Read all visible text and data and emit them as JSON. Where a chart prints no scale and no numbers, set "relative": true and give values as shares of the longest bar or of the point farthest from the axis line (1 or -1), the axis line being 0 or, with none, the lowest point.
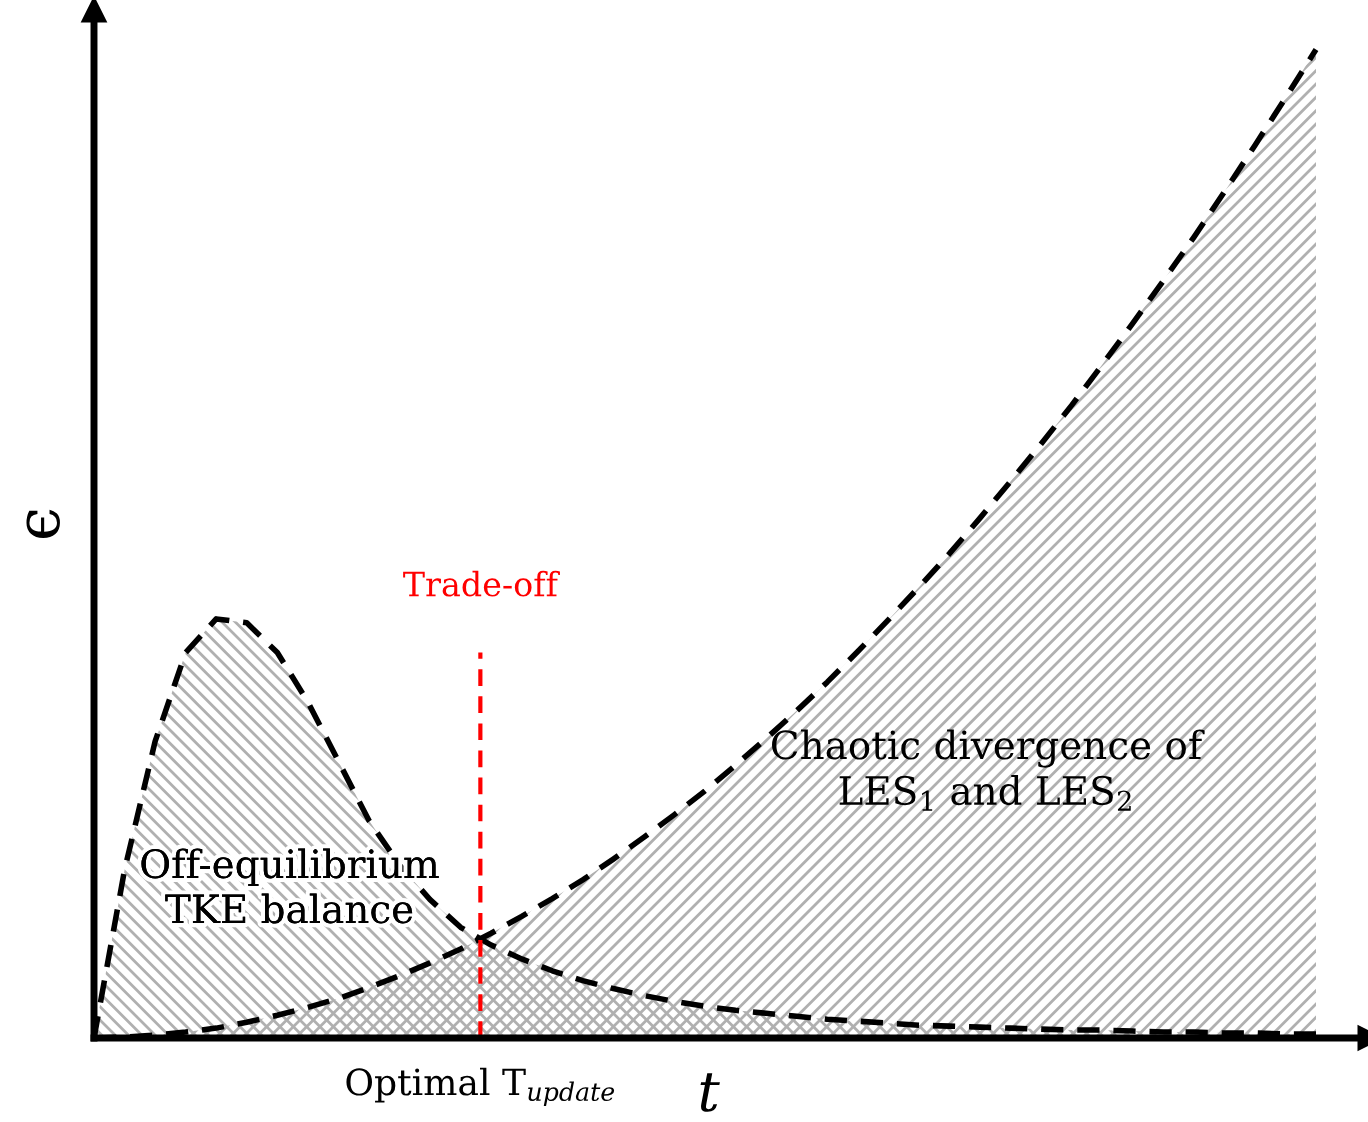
{
  "chart_data": {
    "type": "area",
    "relative": true,
    "xlabel": "t",
    "ylabel": "ϵ",
    "categories": [
      null,
      null,
      null,
      null,
      null,
      null,
      null,
      null,
      null,
      null,
      null,
      null,
      null,
      null,
      null,
      null,
      null,
      null,
      null,
      null,
      null,
      null,
      null,
      null,
      null,
      null,
      null,
      null,
      null,
      null,
      null,
      null,
      null,
      null,
      null,
      null,
      null,
      null,
      null,
      null,
      null
    ],
    "series": [
      {
        "color": "#000000",
        "values": [
          0,
          0.17,
          0.3,
          0.39,
          0.424,
          0.42,
          0.39,
          0.34,
          0.28,
          0.22,
          0.175,
          0.14,
          0.112,
          0.094,
          0.08,
          0.068,
          0.058,
          0.05,
          0.043,
          0.037,
          0.032,
          0.028,
          0.025,
          0.022,
          0.019,
          0.017,
          0.015,
          0.013,
          0.012,
          0.011,
          0.01,
          0.009,
          0.008,
          0.008,
          0.007,
          0.006,
          0.006,
          0.005,
          0.005,
          0.004,
          0.004
        ]
      },
      {
        "color": "#000000",
        "values": [
          0,
          0.001,
          0.003,
          0.006,
          0.01,
          0.016,
          0.023,
          0.031,
          0.04,
          0.051,
          0.063,
          0.076,
          0.09,
          0.106,
          0.123,
          0.141,
          0.16,
          0.181,
          0.203,
          0.226,
          0.25,
          0.276,
          0.303,
          0.331,
          0.36,
          0.391,
          0.423,
          0.456,
          0.49,
          0.526,
          0.563,
          0.601,
          0.64,
          0.681,
          0.723,
          0.766,
          0.81,
          0.856,
          0.903,
          0.951,
          1
        ]
      }
    ],
    "line_style": "dashed",
    "annotations": [
      "Off-equilibrium\nTKE balance",
      "Chaotic divergence of\nLES$_{1}$ and LES$_{2}$",
      "Optimal T$_{update}$",
      "Trade-off"
    ]
  }
}
